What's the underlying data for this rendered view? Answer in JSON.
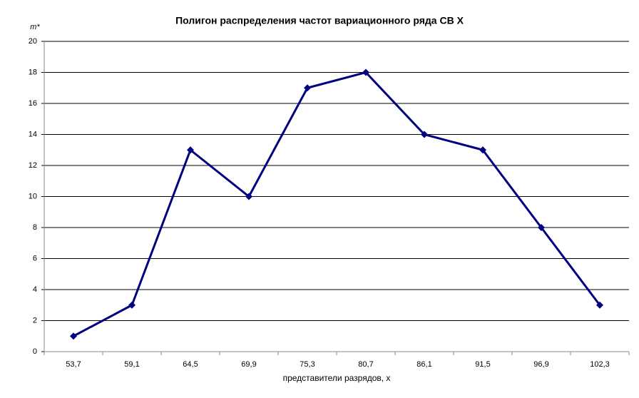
{
  "chart_data": {
    "type": "line",
    "title": "Полигон распределения частот вариационного ряда СВ X",
    "y_label": "m*",
    "x_label": "представители разрядов, x",
    "categories": [
      "53,7",
      "59,1",
      "64,5",
      "69,9",
      "75,3",
      "80,7",
      "86,1",
      "91,5",
      "96,9",
      "102,3"
    ],
    "series": [
      {
        "name": "m*",
        "color": "#000080",
        "values": [
          1,
          3,
          13,
          10,
          17,
          18,
          14,
          13,
          8,
          3
        ]
      }
    ],
    "ylim": [
      0,
      20
    ],
    "yticks": [
      0,
      2,
      4,
      6,
      8,
      10,
      12,
      14,
      16,
      18,
      20
    ],
    "grid": true
  }
}
